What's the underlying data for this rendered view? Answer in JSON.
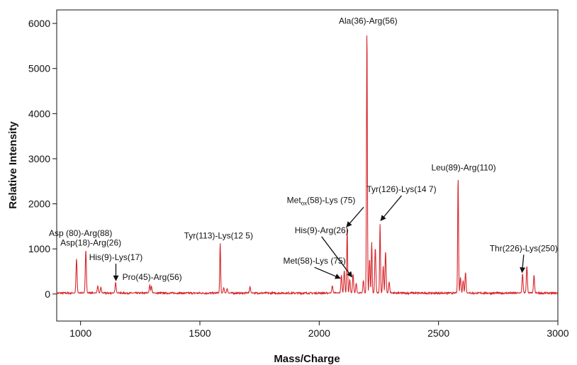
{
  "chart_data": {
    "type": "line",
    "xlabel": "Mass/Charge",
    "ylabel": "Relative Intensity",
    "xlim": [
      900,
      3000
    ],
    "ylim": [
      -600,
      6300
    ],
    "x_ticks": [
      1000,
      1500,
      2000,
      2500,
      3000
    ],
    "y_ticks": [
      0,
      1000,
      2000,
      3000,
      4000,
      5000,
      6000
    ],
    "grid": false,
    "color": "#d7262b",
    "baseline": {
      "from": 900,
      "to": 3000,
      "level": 20
    },
    "peaks": [
      {
        "x": 983,
        "y": 760
      },
      {
        "x": 1022,
        "y": 950
      },
      {
        "x": 1072,
        "y": 160
      },
      {
        "x": 1085,
        "y": 130
      },
      {
        "x": 1147,
        "y": 240
      },
      {
        "x": 1290,
        "y": 180
      },
      {
        "x": 1297,
        "y": 150
      },
      {
        "x": 1585,
        "y": 1110
      },
      {
        "x": 1600,
        "y": 120
      },
      {
        "x": 1614,
        "y": 100
      },
      {
        "x": 1710,
        "y": 140
      },
      {
        "x": 2055,
        "y": 160
      },
      {
        "x": 2093,
        "y": 400
      },
      {
        "x": 2105,
        "y": 500
      },
      {
        "x": 2117,
        "y": 1430
      },
      {
        "x": 2128,
        "y": 300
      },
      {
        "x": 2142,
        "y": 420
      },
      {
        "x": 2155,
        "y": 220
      },
      {
        "x": 2185,
        "y": 280
      },
      {
        "x": 2200,
        "y": 5850
      },
      {
        "x": 2211,
        "y": 750
      },
      {
        "x": 2220,
        "y": 1130
      },
      {
        "x": 2235,
        "y": 1000
      },
      {
        "x": 2255,
        "y": 1540
      },
      {
        "x": 2268,
        "y": 600
      },
      {
        "x": 2278,
        "y": 920
      },
      {
        "x": 2293,
        "y": 250
      },
      {
        "x": 2582,
        "y": 2570
      },
      {
        "x": 2592,
        "y": 350
      },
      {
        "x": 2603,
        "y": 280
      },
      {
        "x": 2613,
        "y": 460
      },
      {
        "x": 2852,
        "y": 430
      },
      {
        "x": 2870,
        "y": 600
      },
      {
        "x": 2900,
        "y": 400
      }
    ],
    "annotations": [
      {
        "text": "Asp (80)-Arg(88)",
        "x": 1000,
        "y": 1290
      },
      {
        "text": "Asp(18)-Arg(26)",
        "x": 1043,
        "y": 1070
      },
      {
        "text": "His(9)-Lys(17)",
        "x": 1148,
        "y": 750,
        "arrow_to": {
          "x": 1148,
          "y": 300
        }
      },
      {
        "text": "Pro(45)-Arg(56)",
        "x": 1300,
        "y": 310
      },
      {
        "text": "Tyr(113)-Lys(12 5)",
        "x": 1578,
        "y": 1230
      },
      {
        "text": "Met(58)-Lys (75)",
        "x": 1980,
        "y": 670,
        "arrow_to": {
          "x": 2088,
          "y": 350
        }
      },
      {
        "text": "His(9)-Arg(26)",
        "x": 2010,
        "y": 1350,
        "arrow_to": {
          "x": 2137,
          "y": 380
        }
      },
      {
        "text": "Tyr(126)-Lys(14 7)",
        "x": 2345,
        "y": 2260,
        "arrow_to": {
          "x": 2258,
          "y": 1630
        }
      },
      {
        "text": "Leu(89)-Arg(110)",
        "x": 2605,
        "y": 2740
      },
      {
        "text": "Thr(226)-Lys(250)",
        "x": 2857,
        "y": 950,
        "arrow_to": {
          "x": 2850,
          "y": 480
        }
      },
      {
        "text": "Ala(36)-Arg(56)",
        "x": 2205,
        "y": 5990
      }
    ],
    "annotation_met_ox": {
      "prefix": "Met",
      "subscript": "ox",
      "suffix": "(58)-Lys  (75)",
      "x": 2008,
      "y": 2020,
      "arrow_to": {
        "x": 2115,
        "y": 1490
      }
    }
  }
}
